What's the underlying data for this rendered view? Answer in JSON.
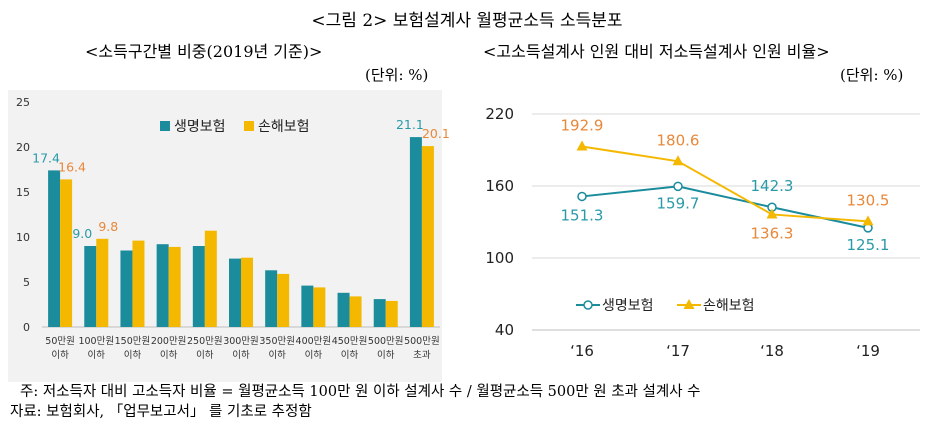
{
  "figure_title": "<그림 2> 보험설계사 월평균소득 소득분포",
  "notes": {
    "note": "주: 저소득자 대비 고소득자 비율 = 월평균소득 100만 원 이하 설계사 수 / 월평균소득 500만 원 초과 설계사 수",
    "source": "자료: 보험회사, 「업무보고서」 를 기초로 추정함"
  },
  "colors": {
    "life": "#1a8c9c",
    "nonlife": "#f5b800",
    "life_label": "#2a9aa8",
    "nonlife_label": "#e8883a"
  },
  "chart_data": [
    {
      "type": "bar",
      "title": "<소득구간별 비중(2019년 기준)>",
      "unit": "(단위: %)",
      "categories": [
        [
          "50만원",
          "이하"
        ],
        [
          "100만원",
          "이하"
        ],
        [
          "150만원",
          "이하"
        ],
        [
          "200만원",
          "이하"
        ],
        [
          "250만원",
          "이하"
        ],
        [
          "300만원",
          "이하"
        ],
        [
          "350만원",
          "이하"
        ],
        [
          "400만원",
          "이하"
        ],
        [
          "450만원",
          "이하"
        ],
        [
          "500만원",
          "이하"
        ],
        [
          "500만원",
          "초과"
        ]
      ],
      "series": [
        {
          "name": "생명보험",
          "values": [
            17.4,
            9.0,
            8.5,
            9.2,
            9.0,
            7.6,
            6.3,
            4.6,
            3.8,
            3.1,
            21.1
          ]
        },
        {
          "name": "손해보험",
          "values": [
            16.4,
            9.8,
            9.6,
            8.9,
            10.7,
            7.7,
            5.9,
            4.4,
            3.4,
            2.9,
            20.1
          ]
        }
      ],
      "labeled": {
        "생명보험": [
          "17.4",
          "9.0",
          null,
          null,
          null,
          null,
          null,
          null,
          null,
          null,
          "21.1"
        ],
        "손해보험": [
          "16.4",
          "9.8",
          null,
          null,
          null,
          null,
          null,
          null,
          null,
          null,
          "20.1"
        ]
      },
      "yticks": [
        "0",
        "5",
        "10",
        "15",
        "20",
        "25"
      ],
      "ylim": [
        0,
        25
      ],
      "legend": "top-left"
    },
    {
      "type": "line",
      "title": "<고소득설계사 인원 대비 저소득설계사 인원 비율>",
      "unit": "(단위: %)",
      "x": [
        "‘16",
        "‘17",
        "‘18",
        "‘19"
      ],
      "series": [
        {
          "name": "생명보험",
          "values": [
            151.3,
            159.7,
            142.3,
            125.1
          ],
          "labels": [
            "151.3",
            "159.7",
            "142.3",
            "125.1"
          ]
        },
        {
          "name": "손해보험",
          "values": [
            192.9,
            180.6,
            136.3,
            130.5
          ],
          "labels": [
            "192.9",
            "180.6",
            "136.3",
            "130.5"
          ]
        }
      ],
      "yticks": [
        "40",
        "100",
        "160",
        "220"
      ],
      "ylim": [
        40,
        220
      ],
      "legend": "bottom-center"
    }
  ]
}
